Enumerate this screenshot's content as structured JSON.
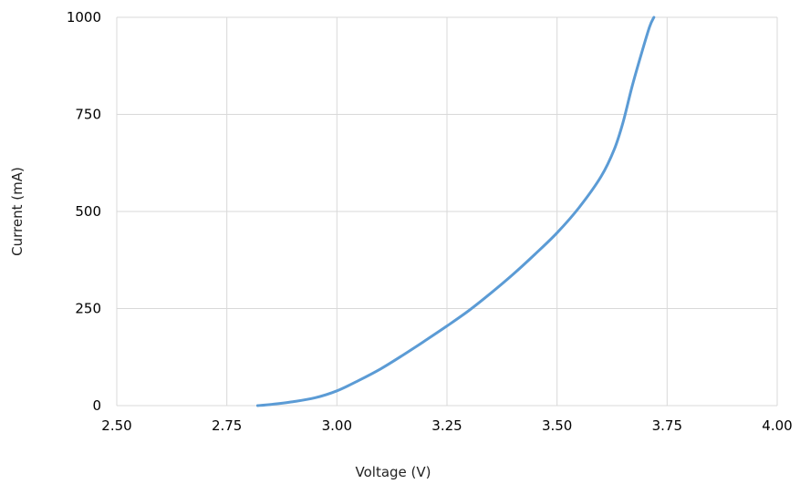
{
  "chart_data": {
    "type": "line",
    "title": "",
    "xlabel": "Voltage (V)",
    "ylabel": "Current (mA)",
    "xlim": [
      2.5,
      4.0
    ],
    "ylim": [
      0,
      1000
    ],
    "x_ticks": [
      "2.50",
      "2.75",
      "3.00",
      "3.25",
      "3.50",
      "3.75",
      "4.00"
    ],
    "y_ticks": [
      "0",
      "250",
      "500",
      "750",
      "1000"
    ],
    "grid": true,
    "legend": "none",
    "series": [
      {
        "color": "#5b9bd5",
        "x": [
          2.82,
          2.85,
          2.9,
          2.95,
          3.0,
          3.05,
          3.1,
          3.15,
          3.2,
          3.25,
          3.3,
          3.35,
          3.4,
          3.45,
          3.5,
          3.55,
          3.6,
          3.63,
          3.65,
          3.67,
          3.69,
          3.71,
          3.72
        ],
        "y": [
          0,
          3,
          10,
          20,
          38,
          65,
          95,
          130,
          167,
          205,
          245,
          290,
          338,
          390,
          445,
          510,
          590,
          660,
          730,
          820,
          900,
          975,
          1000
        ]
      }
    ],
    "colors": {
      "grid": "#d9d9d9",
      "series": "#5b9bd5"
    }
  }
}
